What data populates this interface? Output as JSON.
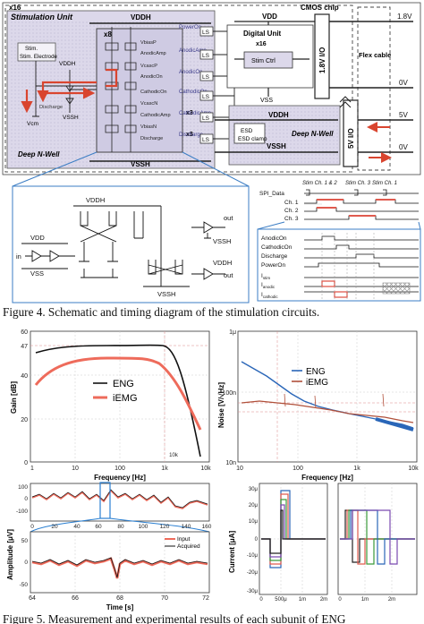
{
  "figure4": {
    "stim_unit": {
      "title": "Stimulation Unit",
      "x16": "x16",
      "x8": "x8",
      "x3a": "x3",
      "x3b": "x3",
      "electrode": "Stim. Electrode",
      "vddh": "VDDH",
      "vssh": "VSSH",
      "vcm": "Vcm",
      "discharge": "Discharge",
      "deep_nwell": "Deep N-Well",
      "ls": "LS",
      "signals": [
        "VbiasP",
        "AnodicAmp",
        "VcascP",
        "AnodicOn",
        "CathodicOn",
        "VcascN",
        "CathodicAmp",
        "VbiasN",
        "Discharge"
      ],
      "outputs": [
        "PowerOn",
        "AnodicAmp",
        "AnodicOn",
        "CathodicOn",
        "CathodicAmp",
        "Discharge"
      ]
    },
    "chip": {
      "title": "CMOS chip",
      "vdd": "VDD",
      "vss": "VSS",
      "digital_unit": "Digital Unit",
      "x16": "x16",
      "stim_ctrl": "Stim Ctrl",
      "io18": "1.8V I/O",
      "io5": "5V I/O",
      "vddh": "VDDH",
      "vssh": "VSSH",
      "esd": "ESD clamp",
      "deep_nwell": "Deep N-Well",
      "flex": "Flex cable",
      "rails": [
        "1.8V",
        "0V",
        "5V",
        "0V"
      ]
    },
    "schematic": {
      "vddh": "VDDH",
      "vdd": "VDD",
      "vss": "VSS",
      "in": "in",
      "out1": "out",
      "out2": "out",
      "vssh1": "VSSH",
      "vddh2": "VDDH",
      "vssh2": "VSSH"
    },
    "timing": {
      "headers": [
        "Stim Ch. 1 & 2",
        "Stim Ch. 3",
        "Stim Ch. 1"
      ],
      "rows1": [
        "SPI_Data",
        "Ch. 1",
        "Ch. 2",
        "Ch. 3"
      ],
      "rows2": [
        "AnodicOn",
        "CathodicOn",
        "Discharge",
        "PowerOn"
      ],
      "istim": "I",
      "istim_sub": "stim",
      "ianodic": "I",
      "ianodic_sub": "anodic",
      "icathodic": "I",
      "icathodic_sub": "cathodic",
      "colors": {
        "ch1": "#e05a4e",
        "ch2": "#e05a4e",
        "ch3": "#e05a4e",
        "anodic": "#e05a4e",
        "cathodic": "#e05a4e"
      }
    },
    "caption": "Figure 4. Schematic and timing diagram of the stimulation circuits."
  },
  "figure5": {
    "gain": {
      "ylabel": "Gain [dB]",
      "xlabel": "Frequency [Hz]",
      "yticks": [
        "60",
        "47",
        "40",
        "20",
        "0"
      ],
      "xticks": [
        "1",
        "10",
        "100",
        "1k",
        "10k",
        "10k"
      ],
      "legend": [
        "ENG",
        "iEMG"
      ],
      "colors": {
        "eng": "#111111",
        "iemg": "#ee6b5b"
      }
    },
    "noise": {
      "ylabel": "Noise [V/√Hz]",
      "xlabel": "Frequency [Hz]",
      "yticks": [
        "1μ",
        "100n",
        "10n"
      ],
      "xticks": [
        "10",
        "100",
        "1k",
        "10k"
      ],
      "legend": [
        "ENG",
        "iEMG"
      ],
      "colors": {
        "eng": "#2a66b8",
        "iemg": "#b0503a"
      }
    },
    "amplitude": {
      "ylabel": "Amplitude [μV]",
      "xlabel": "Time [s]",
      "top_yticks": [
        "100",
        "0",
        "-100"
      ],
      "top_xticks": [
        "0",
        "20",
        "40",
        "60",
        "80",
        "100",
        "120",
        "140",
        "160"
      ],
      "bottom_yticks": [
        "50",
        "0",
        "-50"
      ],
      "bottom_xticks": [
        "64",
        "66",
        "68",
        "70",
        "72"
      ],
      "legend": [
        "Input",
        "Acquired"
      ],
      "colors": {
        "input": "#ee6b5b",
        "acquired": "#111111",
        "zoom": "#2a7fd1"
      }
    },
    "current1": {
      "ylabel": "Current [μA]",
      "yticks": [
        "30μ",
        "20μ",
        "10μ",
        "0",
        "-10μ",
        "-20μ",
        "-30μ"
      ],
      "xticks": [
        "0",
        "500μ",
        "1m",
        "2m"
      ]
    },
    "current2": {
      "xticks": [
        "0",
        "1m",
        "2m"
      ]
    },
    "caption": "Figure 5. Measurement and experimental results of each subunit of ENG"
  }
}
